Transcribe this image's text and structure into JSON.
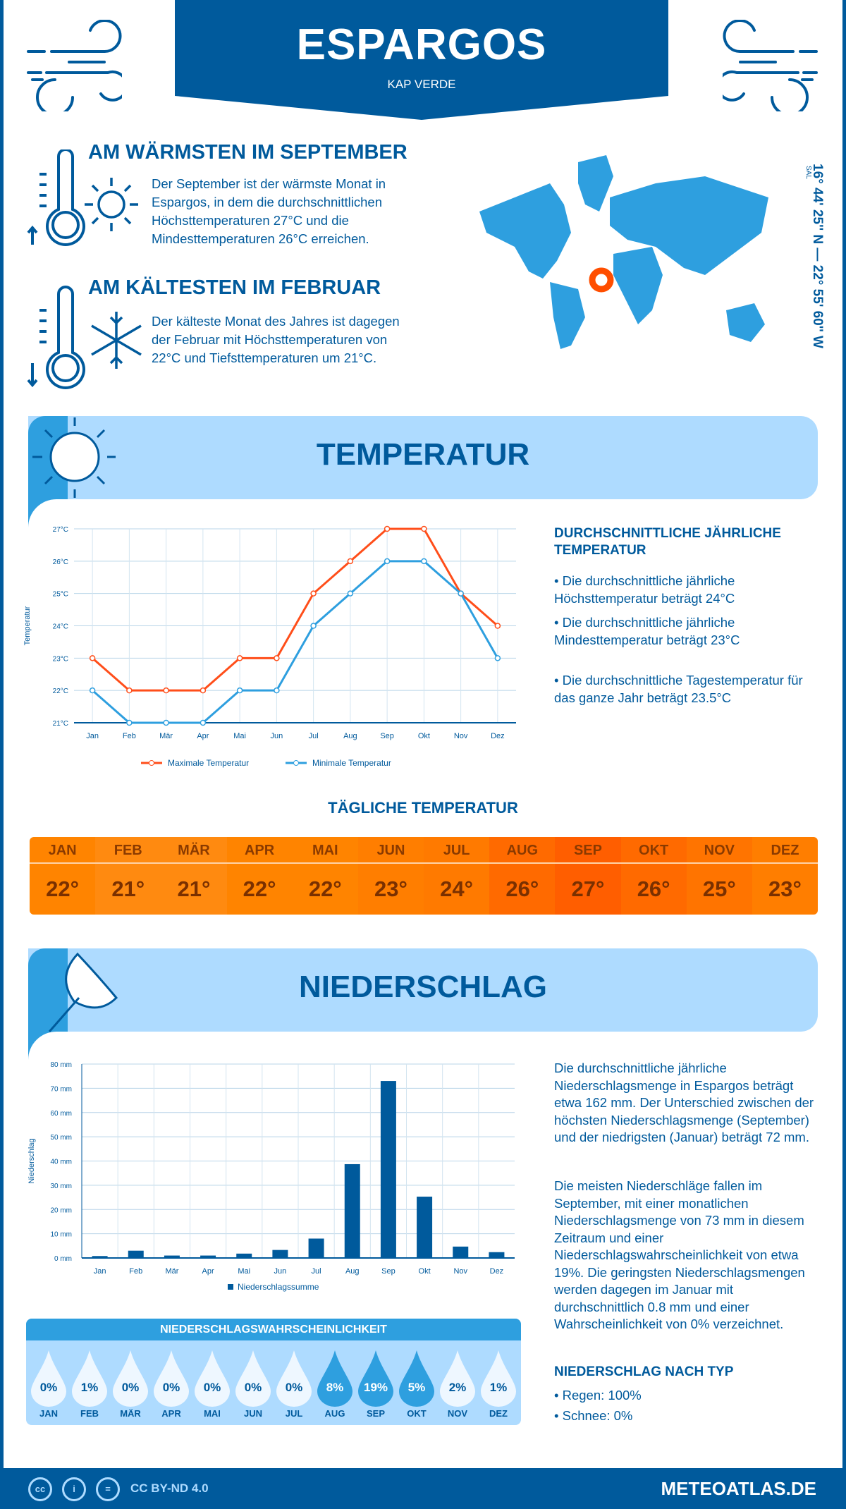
{
  "header": {
    "title": "ESPARGOS",
    "subtitle": "KAP VERDE"
  },
  "warmest": {
    "heading": "AM WÄRMSTEN IM SEPTEMBER",
    "text": "Der September ist der wärmste Monat in Espargos, in dem die durchschnittlichen Höchsttemperaturen 27°C und die Mindesttemperaturen 26°C erreichen."
  },
  "coldest": {
    "heading": "AM KÄLTESTEN IM FEBRUAR",
    "text": "Der kälteste Monat des Jahres ist dagegen der Februar mit Höchsttemperaturen von 22°C und Tiefsttemperaturen um 21°C."
  },
  "map": {
    "coordinates": "16° 44' 25'' N — 22° 55' 60'' W",
    "region": "SAL",
    "marker_color": "#ff4e00"
  },
  "temperature_section": {
    "title": "TEMPERATUR",
    "summary_heading": "DURCHSCHNITTLICHE JÄHRLICHE TEMPERATUR",
    "bullets": [
      "• Die durchschnittliche jährliche Höchsttemperatur beträgt 24°C",
      "• Die durchschnittliche jährliche Mindesttemperatur beträgt 23°C",
      "• Die durchschnittliche Tagestemperatur für das ganze Jahr beträgt 23.5°C"
    ],
    "daily_heading": "TÄGLICHE TEMPERATUR",
    "daily": [
      {
        "m": "JAN",
        "v": "22°"
      },
      {
        "m": "FEB",
        "v": "21°"
      },
      {
        "m": "MÄR",
        "v": "21°"
      },
      {
        "m": "APR",
        "v": "22°"
      },
      {
        "m": "MAI",
        "v": "22°"
      },
      {
        "m": "JUN",
        "v": "23°"
      },
      {
        "m": "JUL",
        "v": "24°"
      },
      {
        "m": "AUG",
        "v": "26°"
      },
      {
        "m": "SEP",
        "v": "27°"
      },
      {
        "m": "OKT",
        "v": "26°"
      },
      {
        "m": "NOV",
        "v": "25°"
      },
      {
        "m": "DEZ",
        "v": "23°"
      }
    ]
  },
  "precip_section": {
    "title": "NIEDERSCHLAG",
    "text1": "Die durchschnittliche jährliche Niederschlagsmenge in Espargos beträgt etwa 162 mm. Der Unterschied zwischen der höchsten Niederschlagsmenge (September) und der niedrigsten (Januar) beträgt 72 mm.",
    "text2": "Die meisten Niederschläge fallen im September, mit einer monatlichen Niederschlagsmenge von 73 mm in diesem Zeitraum und einer Niederschlagswahrscheinlichkeit von etwa 19%. Die geringsten Niederschlagsmengen werden dagegen im Januar mit durchschnittlich 0.8 mm und einer Wahrscheinlichkeit von 0% verzeichnet.",
    "type_heading": "NIEDERSCHLAG NACH TYP",
    "types": [
      "• Regen: 100%",
      "• Schnee: 0%"
    ],
    "prob_heading": "NIEDERSCHLAGSWAHRSCHEINLICHKEIT",
    "prob": [
      {
        "m": "JAN",
        "v": "0%"
      },
      {
        "m": "FEB",
        "v": "1%"
      },
      {
        "m": "MÄR",
        "v": "0%"
      },
      {
        "m": "APR",
        "v": "0%"
      },
      {
        "m": "MAI",
        "v": "0%"
      },
      {
        "m": "JUN",
        "v": "0%"
      },
      {
        "m": "JUL",
        "v": "0%"
      },
      {
        "m": "AUG",
        "v": "8%"
      },
      {
        "m": "SEP",
        "v": "19%"
      },
      {
        "m": "OKT",
        "v": "5%"
      },
      {
        "m": "NOV",
        "v": "2%"
      },
      {
        "m": "DEZ",
        "v": "1%"
      }
    ]
  },
  "footer": {
    "license": "CC BY-ND 4.0",
    "site": "METEOATLAS.DE",
    "icons": [
      "cc-icon",
      "by-icon",
      "nd-icon"
    ]
  },
  "chart_data": [
    {
      "type": "line",
      "categories": [
        "Jan",
        "Feb",
        "Mär",
        "Apr",
        "Mai",
        "Jun",
        "Jul",
        "Aug",
        "Sep",
        "Okt",
        "Nov",
        "Dez"
      ],
      "series": [
        {
          "name": "Maximale Temperatur",
          "color": "#ff4e1a",
          "values": [
            23,
            22,
            22,
            22,
            23,
            23,
            25,
            26,
            27,
            27,
            25,
            24
          ]
        },
        {
          "name": "Minimale Temperatur",
          "color": "#2e9fdf",
          "values": [
            22,
            21,
            21,
            21,
            22,
            22,
            24,
            25,
            26,
            26,
            25,
            23
          ]
        }
      ],
      "ylabel": "Temperatur",
      "ylim": [
        21,
        27
      ],
      "yticks": [
        "21°C",
        "22°C",
        "23°C",
        "24°C",
        "25°C",
        "26°C",
        "27°C"
      ],
      "grid": true,
      "legend": "bottom"
    },
    {
      "type": "bar",
      "categories": [
        "Jan",
        "Feb",
        "Mär",
        "Apr",
        "Mai",
        "Jun",
        "Jul",
        "Aug",
        "Sep",
        "Okt",
        "Nov",
        "Dez"
      ],
      "series": [
        {
          "name": "Niederschlagssumme",
          "color": "#005a9c",
          "values": [
            0.8,
            3,
            1,
            1,
            1.8,
            3.3,
            8,
            38.7,
            73,
            25.3,
            4.7,
            2.4
          ]
        }
      ],
      "ylabel": "Niederschlag",
      "ylim": [
        0,
        80
      ],
      "yticks": [
        "0 mm",
        "10 mm",
        "20 mm",
        "30 mm",
        "40 mm",
        "50 mm",
        "60 mm",
        "70 mm",
        "80 mm"
      ],
      "grid": true,
      "legend": "bottom"
    }
  ]
}
